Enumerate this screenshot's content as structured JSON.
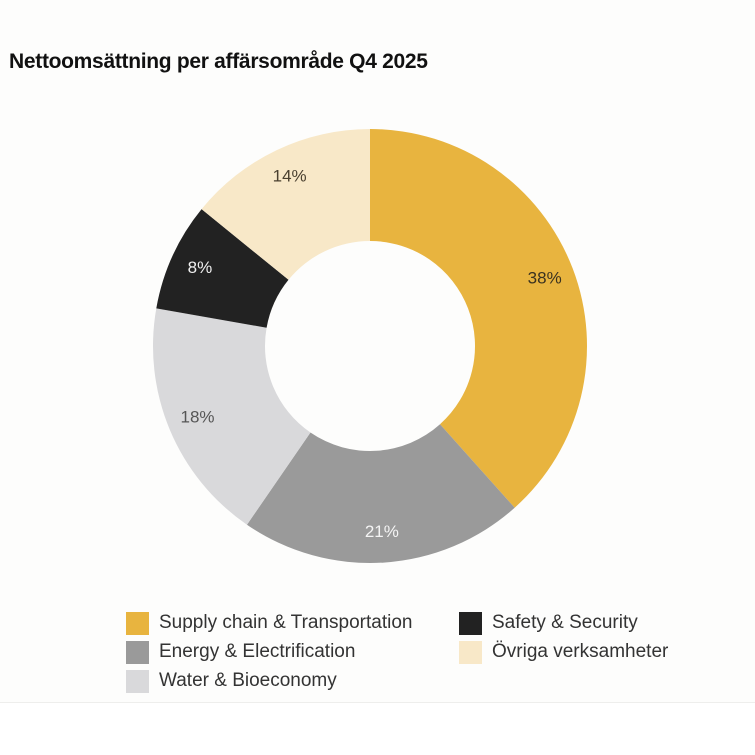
{
  "chart_data": {
    "type": "pie",
    "variant": "donut",
    "title": "Nettoomsättning per affärsområde Q4 2025",
    "unit": "%",
    "categories": [
      "Supply chain & Transportation",
      "Energy & Electrification",
      "Water & Bioeconomy",
      "Safety & Security",
      "Övriga verksamheter"
    ],
    "values": [
      38,
      21,
      18,
      8,
      14
    ],
    "labels": [
      "38%",
      "21%",
      "18%",
      "8%",
      "14%"
    ],
    "colors": [
      "#e8b43f",
      "#9a9a9a",
      "#d9d9db",
      "#222222",
      "#f8e8c8"
    ],
    "label_colors": [
      "#3a3220",
      "#f4f4f4",
      "#555555",
      "#f0f0f0",
      "#4a4030"
    ],
    "start_angle": "top, clockwise",
    "legend": {
      "placement": "bottom",
      "items": [
        {
          "label": "Supply chain & Transportation",
          "color": "#e8b43f"
        },
        {
          "label": "Safety & Security",
          "color": "#222222"
        },
        {
          "label": "Energy & Electrification",
          "color": "#9a9a9a"
        },
        {
          "label": "Övriga verksamheter",
          "color": "#f8e8c8"
        },
        {
          "label": "Water & Bioeconomy",
          "color": "#d9d9db"
        }
      ]
    }
  }
}
